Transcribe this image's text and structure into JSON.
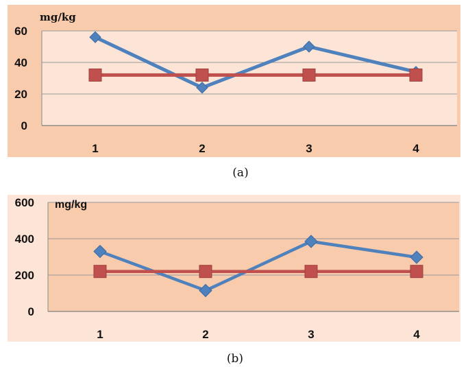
{
  "chart_data": [
    {
      "type": "line",
      "caption": "(a)",
      "unit_label": "mg/kg",
      "categories": [
        "1",
        "2",
        "3",
        "4"
      ],
      "yticks": [
        "0",
        "20",
        "40",
        "60"
      ],
      "ylim": [
        0,
        60
      ],
      "grid": true,
      "series": [
        {
          "values": [
            56,
            24,
            50,
            34
          ],
          "marker": "diamond",
          "color": "#4f81bd"
        },
        {
          "values": [
            32,
            32,
            32,
            32
          ],
          "marker": "square",
          "color": "#c0504d"
        }
      ],
      "background": "#f8cbad",
      "plot_background": "#fce4d6"
    },
    {
      "type": "line",
      "caption": "(b)",
      "unit_label": "mg/kg",
      "categories": [
        "1",
        "2",
        "3",
        "4"
      ],
      "yticks": [
        "0",
        "200",
        "400",
        "600"
      ],
      "ylim": [
        0,
        600
      ],
      "grid": true,
      "series": [
        {
          "values": [
            330,
            115,
            385,
            298
          ],
          "marker": "diamond",
          "color": "#4f81bd"
        },
        {
          "values": [
            220,
            220,
            220,
            220
          ],
          "marker": "square",
          "color": "#c0504d"
        }
      ],
      "background": "#fce4d6",
      "plot_background": "#f8cbad"
    }
  ]
}
